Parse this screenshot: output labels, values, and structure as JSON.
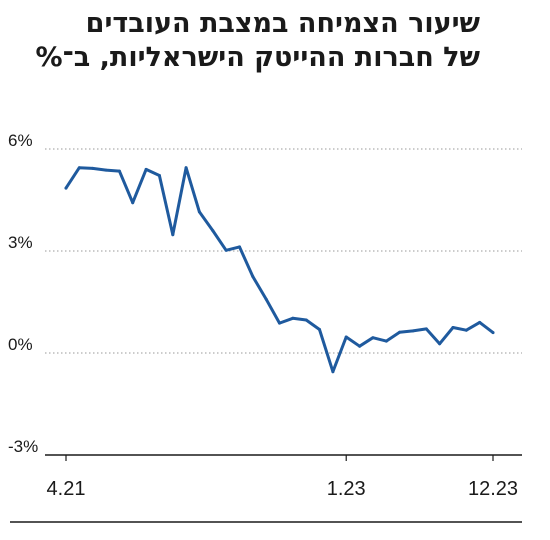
{
  "chart_data": {
    "type": "line",
    "title_line1": "שיעור הצמיחה במצבת העובדים",
    "title_line2": "של חברות ההייטק הישראליות, ב־%",
    "xlabel": "",
    "ylabel": "",
    "ylim": [
      -3,
      6
    ],
    "y_ticks": [
      {
        "value": 6,
        "label": "6%"
      },
      {
        "value": 3,
        "label": "3%"
      },
      {
        "value": 0,
        "label": "0%"
      },
      {
        "value": -3,
        "label": "-3%"
      }
    ],
    "x_tick_labels": [
      {
        "index": 0,
        "label": "4.21"
      },
      {
        "index": 21,
        "label": "1.23"
      },
      {
        "index": 32,
        "label": "12.23"
      }
    ],
    "grid": true,
    "series": [
      {
        "color": "#1f5a9e",
        "values": [
          4.85,
          5.45,
          5.43,
          5.38,
          5.35,
          4.42,
          5.4,
          5.22,
          3.48,
          5.45,
          4.15,
          3.6,
          3.02,
          3.12,
          2.25,
          1.58,
          0.88,
          1.02,
          0.97,
          0.69,
          -0.55,
          0.47,
          0.2,
          0.45,
          0.35,
          0.61,
          0.65,
          0.71,
          0.27,
          0.75,
          0.67,
          0.9,
          0.6
        ]
      }
    ]
  }
}
